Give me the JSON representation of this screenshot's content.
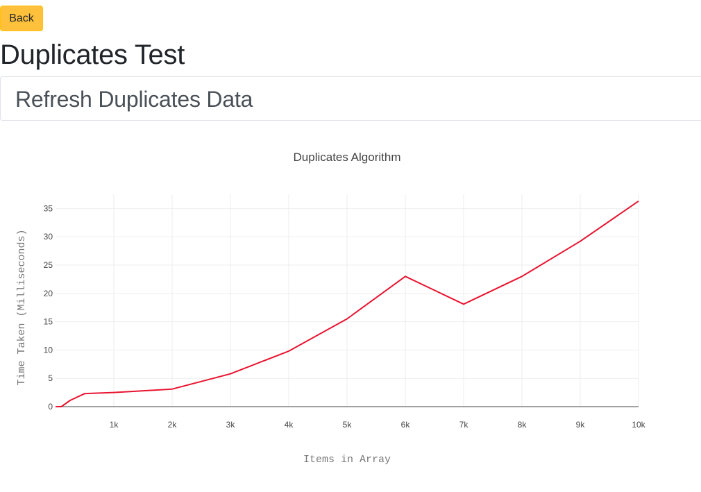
{
  "header": {
    "back_label": "Back",
    "page_title": "Duplicates Test",
    "refresh_label": "Refresh Duplicates Data"
  },
  "colors": {
    "back_button": "#ffc13b",
    "line": "#e8132f",
    "grid": "#eeeeee"
  },
  "chart_data": {
    "type": "line",
    "title": "Duplicates Algorithm",
    "xlabel": "Items in Array",
    "ylabel": "Time Taken (Milliseconds)",
    "xlim": [
      0,
      10000
    ],
    "ylim": [
      0,
      37.5
    ],
    "grid": true,
    "x_ticks": [
      1000,
      2000,
      3000,
      4000,
      5000,
      6000,
      7000,
      8000,
      9000,
      10000
    ],
    "x_tick_labels": [
      "1k",
      "2k",
      "3k",
      "4k",
      "5k",
      "6k",
      "7k",
      "8k",
      "9k",
      "10k"
    ],
    "y_ticks": [
      0,
      5,
      10,
      15,
      20,
      25,
      30,
      35
    ],
    "y_tick_labels": [
      "0",
      "5",
      "10",
      "15",
      "20",
      "25",
      "30",
      "35"
    ],
    "series": [
      {
        "x": [
          0,
          100,
          250,
          500,
          1000,
          2000,
          3000,
          4000,
          5000,
          6000,
          7000,
          8000,
          9000,
          10000
        ],
        "y": [
          0,
          0,
          1.1,
          2.3,
          2.5,
          3.1,
          5.8,
          9.8,
          15.5,
          23.0,
          18.1,
          23.0,
          29.2,
          36.3
        ]
      }
    ]
  }
}
